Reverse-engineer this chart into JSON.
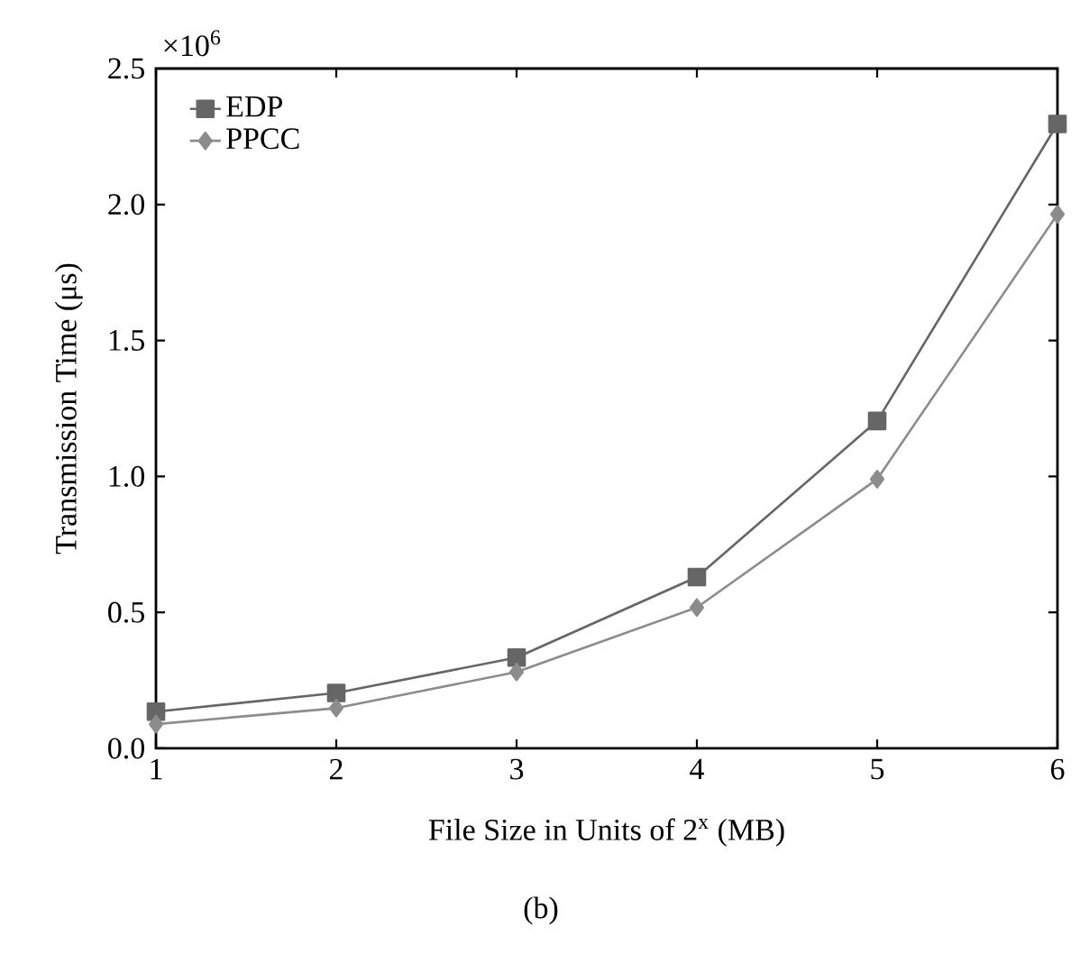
{
  "chart_data": {
    "type": "line",
    "xlabel": "File Size in Units of 2$^{x}$ (MB)",
    "ylabel": "Transmission Time (μs)",
    "x": [
      1,
      2,
      3,
      4,
      5,
      6
    ],
    "series": [
      {
        "name": "EDP",
        "color": "#666666",
        "marker": "square",
        "values": [
          0.135,
          0.204,
          0.334,
          0.63,
          1.204,
          2.296
        ]
      },
      {
        "name": "PPCC",
        "color": "#8c8c8c",
        "marker": "diamond",
        "values": [
          0.089,
          0.148,
          0.281,
          0.518,
          0.99,
          1.964
        ]
      }
    ],
    "xlim": [
      1,
      6
    ],
    "xticks": [
      1,
      2,
      3,
      4,
      5,
      6
    ],
    "ylim": [
      0,
      2.5
    ],
    "yticks": [
      {
        "value": 0,
        "label": "0.0"
      },
      0.5,
      {
        "value": 1,
        "label": "1.0"
      },
      1.5,
      {
        "value": 2,
        "label": "2.0"
      },
      2.5
    ],
    "legend": "top left",
    "grid": false,
    "line_style": "solid",
    "annotations": [
      "×10$^{6}$",
      "(b)"
    ]
  }
}
